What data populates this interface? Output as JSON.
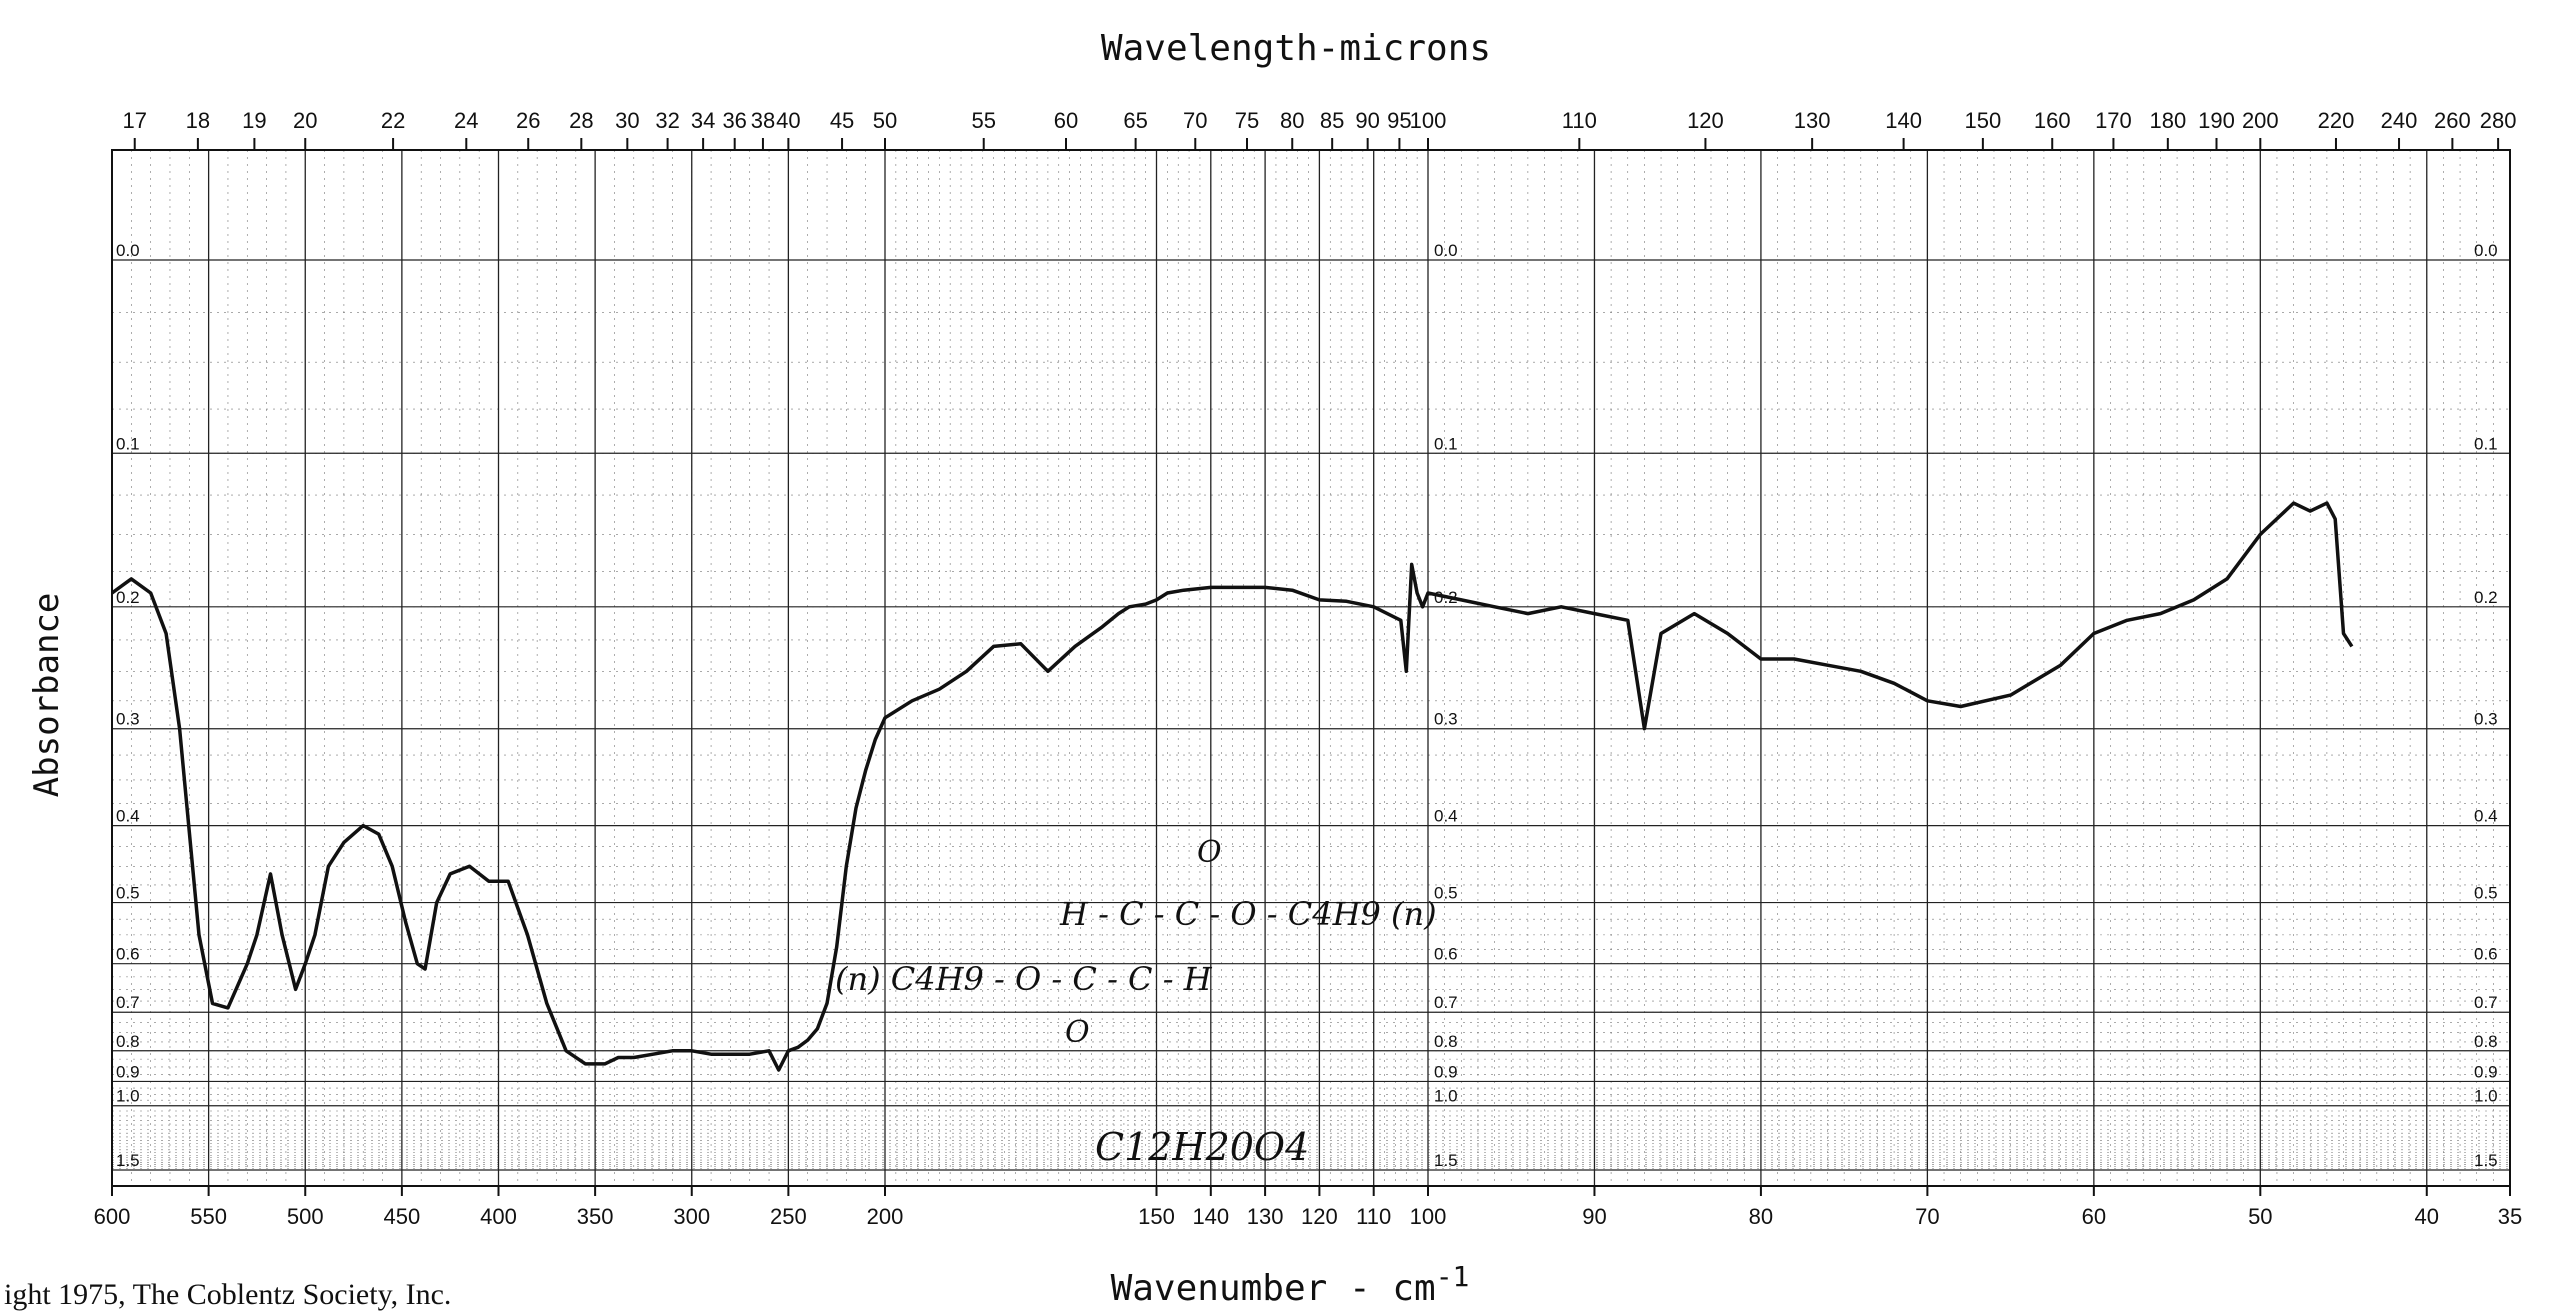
{
  "chart_data": {
    "type": "line",
    "title": "Wavelength-microns",
    "xlabel": "Wavenumber - cm",
    "xlabel_superscript": "-1",
    "ylabel": "Absorbance",
    "copyright": "ight 1975, The Coblentz Society, Inc.",
    "annotations": {
      "structure_line1": "O",
      "structure_line2": "H - C - C - O - C4H9 (n)",
      "structure_line3": "(n) C4H9 - O - C - C - H",
      "structure_line4": "O",
      "formula": "C12H20O4"
    },
    "x_scale": "piecewise-linear",
    "segments": [
      {
        "from": 600,
        "to": 200,
        "ticks": [
          600,
          550,
          500,
          450,
          400,
          350,
          300,
          250,
          200
        ]
      },
      {
        "from": 200,
        "to": 100,
        "ticks": [
          200,
          150,
          140,
          130,
          120,
          110,
          100
        ]
      },
      {
        "from": 100,
        "to": 35,
        "ticks": [
          100,
          90,
          80,
          70,
          60,
          50,
          40,
          35
        ]
      }
    ],
    "top_axis_ticks": [
      "17",
      "18",
      "19",
      "20",
      "22",
      "24",
      "26",
      "28",
      "30",
      "32",
      "34",
      "36",
      "38",
      "40",
      "45",
      "50",
      "55",
      "60",
      "65",
      "70",
      "75",
      "80",
      "85",
      "90",
      "95",
      "100",
      "110",
      "120",
      "130",
      "140",
      "150",
      "160",
      "170",
      "180",
      "190",
      "200",
      "220",
      "240",
      "260",
      "280"
    ],
    "y_scale": "log",
    "y_ticks": [
      "0.0",
      "0.1",
      "0.2",
      "0.3",
      "0.4",
      "0.5",
      "0.6",
      "0.7",
      "0.8",
      "0.9",
      "1.0",
      "1.5"
    ],
    "grid": true,
    "series": [
      {
        "x": [
          600,
          590,
          580,
          572,
          565,
          555,
          548,
          540,
          530,
          525,
          518,
          512,
          505,
          500,
          495,
          488,
          480,
          470,
          462,
          455,
          448,
          442,
          438,
          432,
          425,
          415,
          405,
          395,
          385,
          375,
          365,
          355,
          345,
          338,
          330,
          320,
          310,
          300,
          290,
          280,
          270,
          260,
          255,
          250,
          245,
          240,
          235,
          230,
          225,
          220,
          215,
          210,
          205,
          200,
          195,
          190,
          185,
          180,
          175,
          170,
          165,
          160,
          157,
          155,
          152,
          150,
          148,
          145,
          140,
          135,
          130,
          125,
          120,
          115,
          110,
          105,
          104,
          103,
          102,
          101,
          100,
          98,
          96,
          94,
          92,
          90,
          88,
          87,
          86,
          84,
          82,
          80,
          78,
          76,
          74,
          72,
          70,
          68,
          65,
          62,
          60,
          58,
          56,
          54,
          52,
          50,
          48,
          47,
          46,
          45.5,
          45,
          44.5
        ],
        "y": [
          0.19,
          0.18,
          0.19,
          0.22,
          0.3,
          0.55,
          0.68,
          0.69,
          0.6,
          0.55,
          0.46,
          0.55,
          0.65,
          0.6,
          0.55,
          0.45,
          0.42,
          0.4,
          0.41,
          0.45,
          0.53,
          0.6,
          0.61,
          0.5,
          0.46,
          0.45,
          0.47,
          0.47,
          0.55,
          0.68,
          0.8,
          0.84,
          0.84,
          0.82,
          0.82,
          0.81,
          0.8,
          0.8,
          0.81,
          0.81,
          0.81,
          0.8,
          0.86,
          0.8,
          0.79,
          0.77,
          0.74,
          0.68,
          0.57,
          0.45,
          0.38,
          0.34,
          0.31,
          0.29,
          0.275,
          0.265,
          0.25,
          0.23,
          0.228,
          0.25,
          0.23,
          0.215,
          0.205,
          0.2,
          0.198,
          0.195,
          0.19,
          0.188,
          0.186,
          0.186,
          0.186,
          0.188,
          0.195,
          0.196,
          0.2,
          0.21,
          0.25,
          0.17,
          0.19,
          0.2,
          0.19,
          0.195,
          0.2,
          0.205,
          0.2,
          0.205,
          0.21,
          0.3,
          0.22,
          0.205,
          0.22,
          0.24,
          0.24,
          0.245,
          0.25,
          0.26,
          0.275,
          0.28,
          0.27,
          0.245,
          0.22,
          0.21,
          0.205,
          0.195,
          0.18,
          0.15,
          0.13,
          0.135,
          0.13,
          0.14,
          0.22,
          0.23
        ]
      }
    ]
  }
}
